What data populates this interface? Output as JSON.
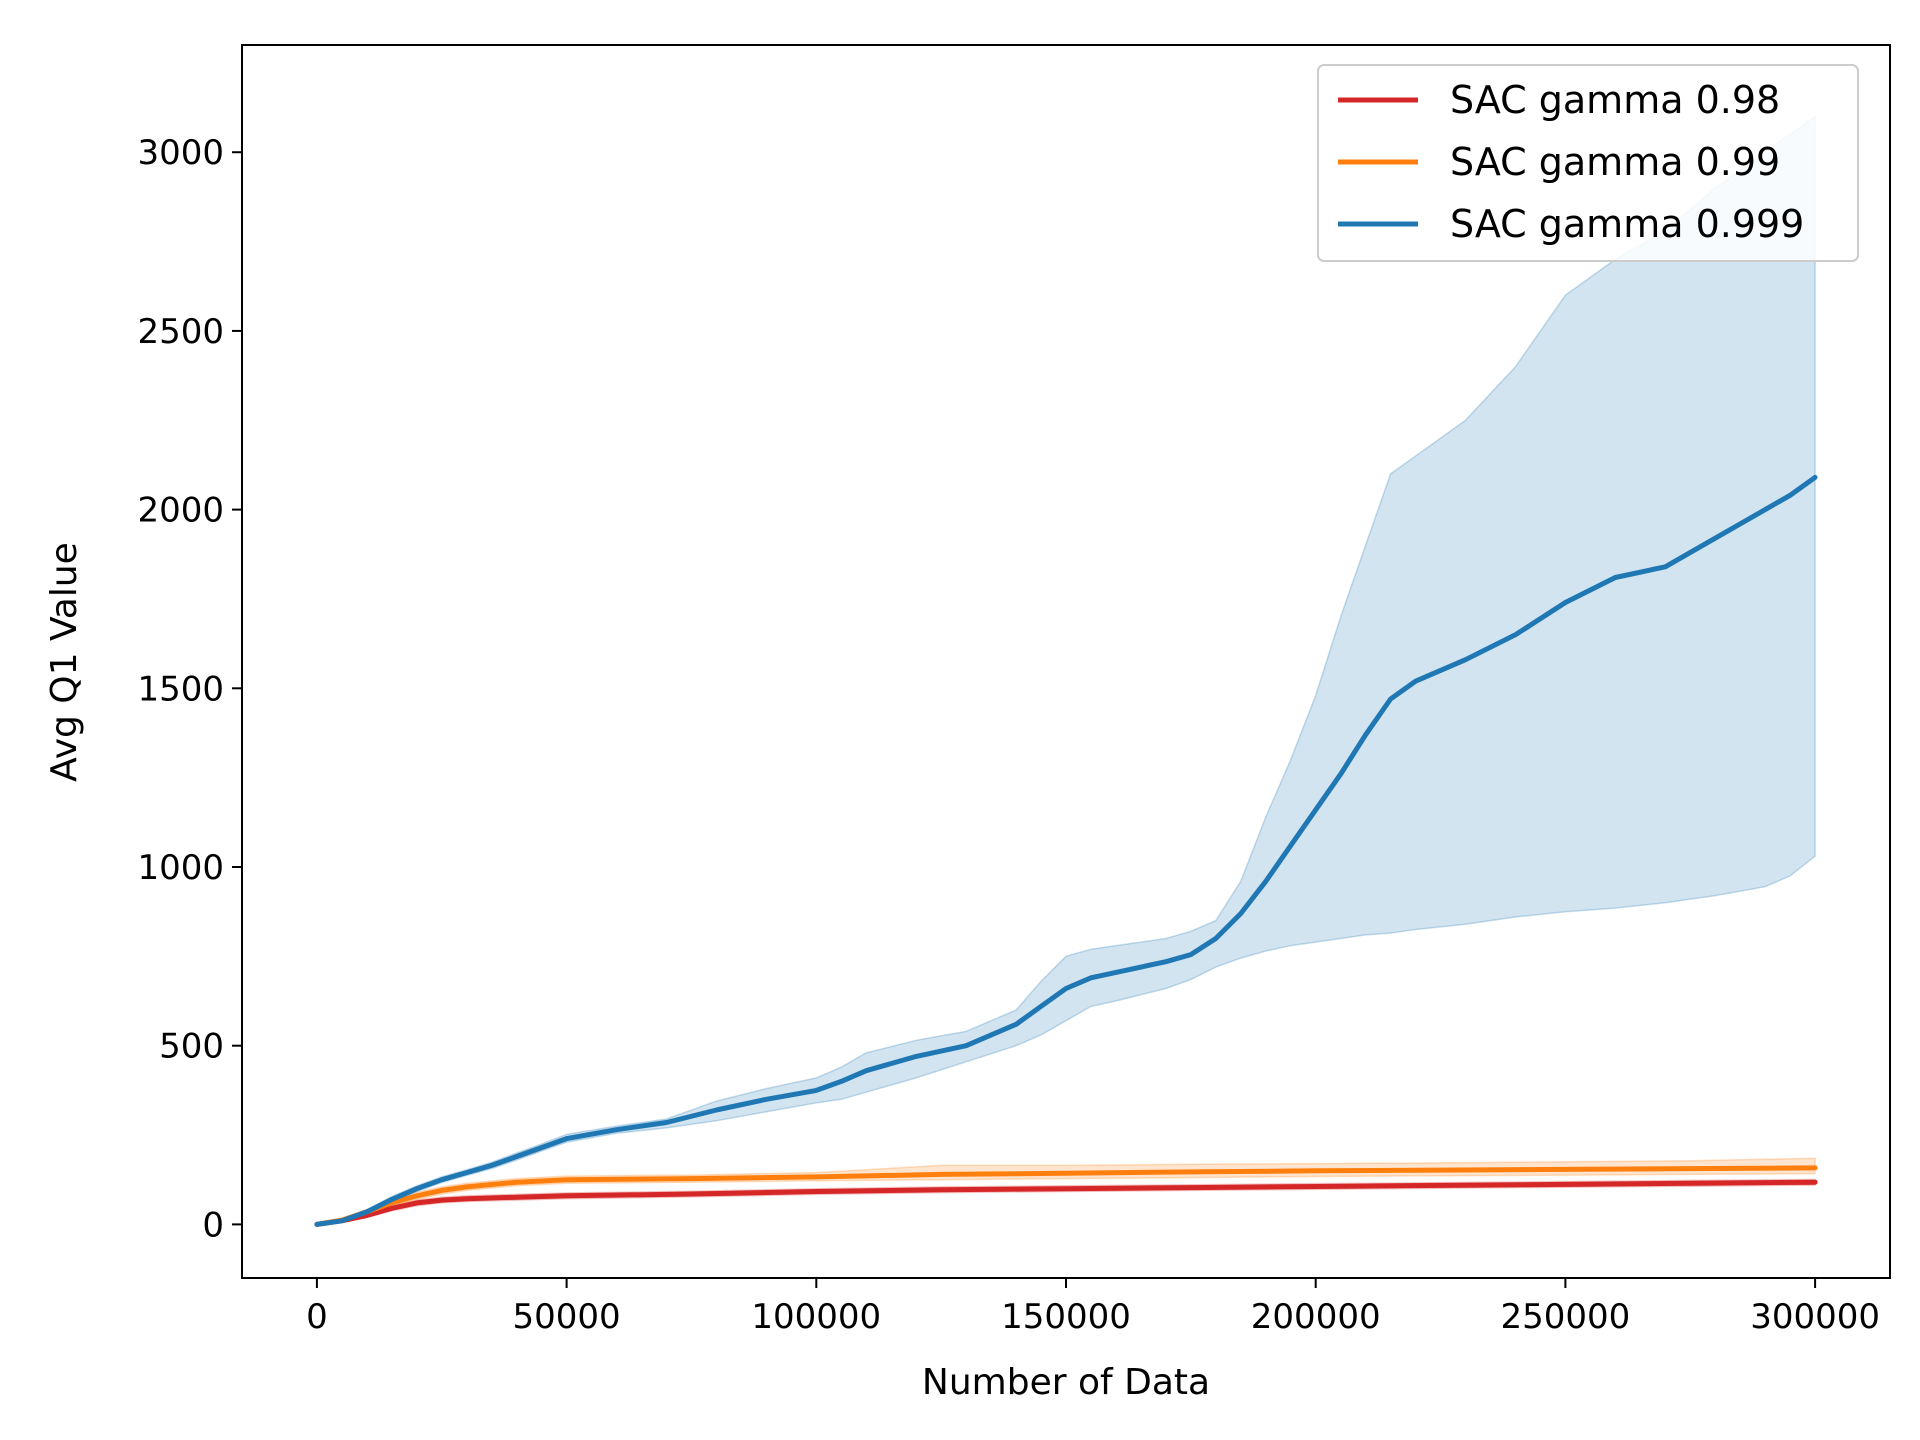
{
  "chart_data": {
    "type": "line",
    "xlabel": "Number of Data",
    "ylabel": "Avg Q1 Value",
    "xlim": [
      -15000,
      315000
    ],
    "ylim": [
      -150,
      3300
    ],
    "xticks": [
      0,
      50000,
      100000,
      150000,
      200000,
      250000,
      300000
    ],
    "xtick_labels": [
      "0",
      "50000",
      "100000",
      "150000",
      "200000",
      "250000",
      "300000"
    ],
    "yticks": [
      0,
      500,
      1000,
      1500,
      2000,
      2500,
      3000
    ],
    "ytick_labels": [
      "0",
      "500",
      "1000",
      "1500",
      "2000",
      "2500",
      "3000"
    ],
    "grid": false,
    "legend_position": "top-right",
    "series": [
      {
        "name": "SAC gamma 0.98",
        "color": "#d62728",
        "x": [
          0,
          5000,
          10000,
          15000,
          20000,
          25000,
          30000,
          40000,
          50000,
          75000,
          100000,
          125000,
          150000,
          175000,
          200000,
          225000,
          250000,
          275000,
          300000
        ],
        "y": [
          0,
          10,
          25,
          45,
          60,
          68,
          72,
          76,
          80,
          85,
          92,
          97,
          100,
          103,
          106,
          109,
          112,
          115,
          118
        ],
        "lower": [
          0,
          8,
          20,
          38,
          52,
          60,
          64,
          68,
          72,
          77,
          84,
          89,
          92,
          95,
          98,
          101,
          104,
          107,
          110
        ],
        "upper": [
          0,
          12,
          30,
          52,
          68,
          76,
          80,
          84,
          88,
          93,
          100,
          105,
          108,
          111,
          114,
          117,
          120,
          123,
          126
        ]
      },
      {
        "name": "SAC gamma 0.99",
        "color": "#ff7f0e",
        "x": [
          0,
          5000,
          10000,
          15000,
          20000,
          25000,
          30000,
          40000,
          50000,
          75000,
          100000,
          125000,
          150000,
          175000,
          200000,
          225000,
          250000,
          275000,
          300000
        ],
        "y": [
          0,
          12,
          35,
          60,
          80,
          95,
          105,
          118,
          125,
          128,
          133,
          140,
          143,
          147,
          150,
          152,
          154,
          156,
          158
        ],
        "lower": [
          0,
          9,
          28,
          50,
          70,
          85,
          95,
          108,
          115,
          118,
          122,
          125,
          128,
          131,
          134,
          136,
          138,
          140,
          142
        ],
        "upper": [
          0,
          15,
          42,
          70,
          90,
          105,
          115,
          128,
          135,
          138,
          145,
          165,
          165,
          168,
          170,
          172,
          175,
          178,
          185
        ]
      },
      {
        "name": "SAC gamma 0.999",
        "color": "#1f77b4",
        "x": [
          0,
          5000,
          10000,
          15000,
          20000,
          25000,
          30000,
          35000,
          40000,
          45000,
          50000,
          60000,
          70000,
          80000,
          90000,
          100000,
          105000,
          110000,
          120000,
          130000,
          140000,
          145000,
          150000,
          155000,
          160000,
          170000,
          175000,
          180000,
          185000,
          190000,
          195000,
          200000,
          205000,
          210000,
          215000,
          220000,
          230000,
          240000,
          250000,
          260000,
          270000,
          280000,
          290000,
          295000,
          300000
        ],
        "y": [
          0,
          10,
          35,
          70,
          100,
          125,
          145,
          165,
          190,
          215,
          240,
          265,
          285,
          320,
          350,
          375,
          400,
          430,
          470,
          500,
          560,
          610,
          660,
          690,
          705,
          735,
          755,
          800,
          870,
          960,
          1060,
          1160,
          1260,
          1370,
          1470,
          1520,
          1580,
          1650,
          1740,
          1810,
          1840,
          1920,
          2000,
          2040,
          2090
        ],
        "lower": [
          0,
          8,
          30,
          62,
          92,
          117,
          137,
          156,
          180,
          205,
          230,
          255,
          270,
          290,
          315,
          340,
          350,
          370,
          410,
          455,
          500,
          530,
          570,
          610,
          625,
          660,
          685,
          720,
          745,
          765,
          780,
          790,
          800,
          810,
          815,
          825,
          840,
          860,
          875,
          885,
          900,
          920,
          945,
          975,
          1030
        ],
        "upper": [
          0,
          12,
          40,
          78,
          108,
          133,
          153,
          174,
          200,
          225,
          252,
          275,
          295,
          345,
          380,
          410,
          440,
          480,
          515,
          540,
          600,
          680,
          750,
          770,
          780,
          800,
          820,
          850,
          960,
          1140,
          1300,
          1480,
          1700,
          1900,
          2100,
          2150,
          2250,
          2400,
          2600,
          2700,
          2780,
          2900,
          3000,
          3050,
          3100
        ]
      }
    ]
  }
}
